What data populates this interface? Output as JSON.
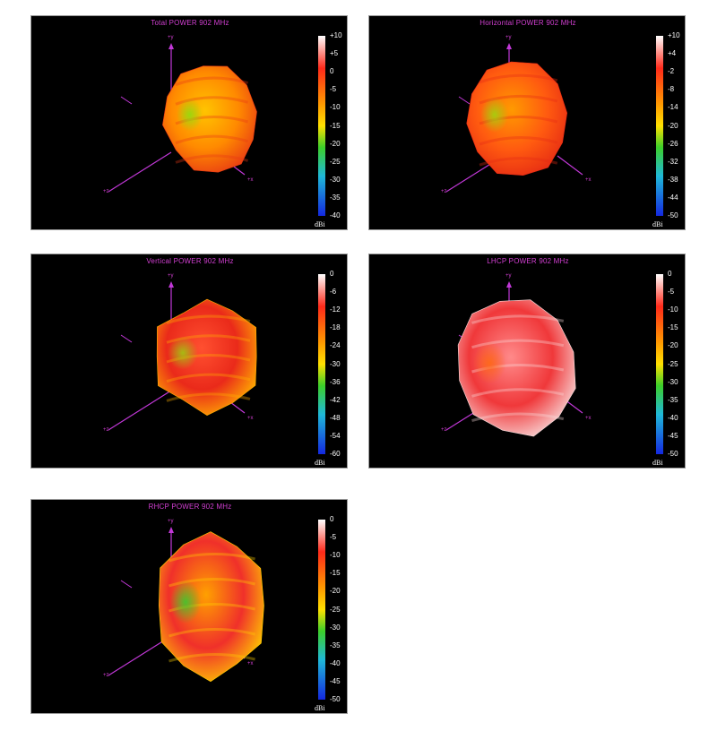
{
  "chart_data": [
    {
      "type": "other",
      "chart_kind": "3d radiation pattern",
      "title": "Total POWER 902  MHz",
      "colorbar_ticks": [
        "+10",
        "+5",
        "0",
        "-5",
        "-10",
        "-15",
        "-20",
        "-25",
        "-30",
        "-35",
        "-40"
      ],
      "colorbar_range": [
        -40,
        10
      ],
      "unit": "dBi",
      "axes": [
        "+y",
        "+z",
        "+x"
      ],
      "dominant_colors": [
        "#ff8a00",
        "#ffc400",
        "#e83a14",
        "#8adf10"
      ]
    },
    {
      "type": "other",
      "chart_kind": "3d radiation pattern",
      "title": "Horizontal POWER 902  MHz",
      "colorbar_ticks": [
        "+10",
        "+4",
        "-2",
        "-8",
        "-14",
        "-20",
        "-26",
        "-32",
        "-38",
        "-44",
        "-50"
      ],
      "colorbar_range": [
        -50,
        10
      ],
      "unit": "dBi",
      "axes": [
        "+y",
        "+z",
        "+x"
      ],
      "dominant_colors": [
        "#ff5a10",
        "#ff9a00",
        "#e52a14",
        "#9ad810"
      ]
    },
    {
      "type": "other",
      "chart_kind": "3d radiation pattern",
      "title": "Vertical POWER 902  MHz",
      "colorbar_ticks": [
        "0",
        "-6",
        "-12",
        "-18",
        "-24",
        "-30",
        "-36",
        "-42",
        "-48",
        "-54",
        "-60"
      ],
      "colorbar_range": [
        -60,
        0
      ],
      "unit": "dBi",
      "axes": [
        "+y",
        "+z",
        "+x"
      ],
      "dominant_colors": [
        "#ea2a1a",
        "#ff5030",
        "#ffb000",
        "#9ad010"
      ]
    },
    {
      "type": "other",
      "chart_kind": "3d radiation pattern",
      "title": "LHCP POWER 902  MHz",
      "colorbar_ticks": [
        "0",
        "-5",
        "-10",
        "-15",
        "-20",
        "-25",
        "-30",
        "-35",
        "-40",
        "-45",
        "-50"
      ],
      "colorbar_range": [
        -50,
        0
      ],
      "unit": "dBi",
      "axes": [
        "+y",
        "+z",
        "+x"
      ],
      "dominant_colors": [
        "#f0383a",
        "#ff8a8a",
        "#f8dcdc",
        "#ff6a10"
      ]
    },
    {
      "type": "other",
      "chart_kind": "3d radiation pattern",
      "title": "RHCP POWER 902  MHz",
      "colorbar_ticks": [
        "0",
        "-5",
        "-10",
        "-15",
        "-20",
        "-25",
        "-30",
        "-35",
        "-40",
        "-45",
        "-50"
      ],
      "colorbar_range": [
        -50,
        0
      ],
      "unit": "dBi",
      "axes": [
        "+y",
        "+z",
        "+x"
      ],
      "dominant_colors": [
        "#f0302a",
        "#ffa000",
        "#ffd000",
        "#30d030"
      ]
    }
  ]
}
